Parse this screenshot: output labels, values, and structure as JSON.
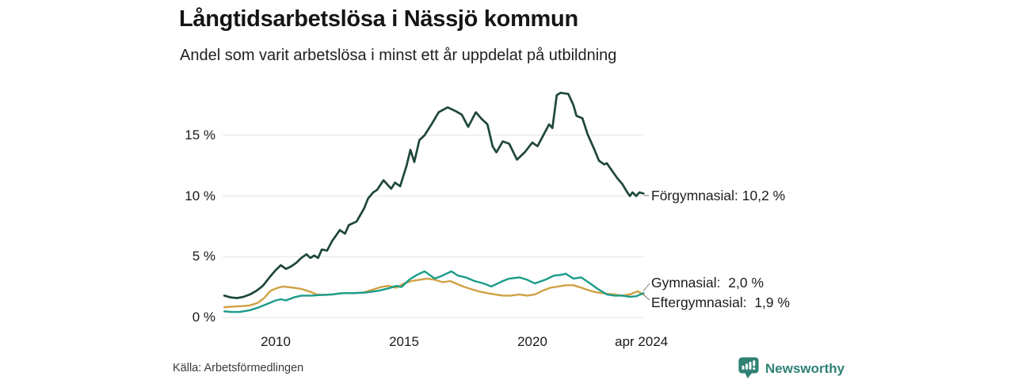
{
  "header": {
    "title": "Långtidsarbetslösa i Nässjö kommun",
    "subtitle": "Andel som varit arbetslösa i minst ett år uppdelat på utbildning"
  },
  "footer": {
    "source": "Källa: Arbetsförmedlingen",
    "brand": {
      "name": "Newsworthy",
      "color": "#2f8173",
      "icon": "newsworthy-speech-bubble-bar-chart-icon"
    }
  },
  "chart_data": {
    "type": "line",
    "title": "Långtidsarbetslösa i Nässjö kommun",
    "subtitle": "Andel som varit arbetslösa i minst ett år uppdelat på utbildning",
    "xlabel": "",
    "ylabel": "",
    "unit": "%",
    "grid": "horizontal",
    "legend_position": "right-end-labels",
    "xlim": [
      2008.0,
      2024.33
    ],
    "ylim": [
      0,
      19
    ],
    "x_ticks": [
      {
        "label": "2010",
        "value": 2010
      },
      {
        "label": "2015",
        "value": 2015
      },
      {
        "label": "2020",
        "value": 2020
      },
      {
        "label": "apr 2024",
        "value": 2024.25
      }
    ],
    "y_ticks": [
      {
        "label": "0 %",
        "value": 0
      },
      {
        "label": "5 %",
        "value": 5
      },
      {
        "label": "10 %",
        "value": 10
      },
      {
        "label": "15 %",
        "value": 15
      }
    ],
    "series": [
      {
        "id": "eftergymnasial",
        "name": "Eftergymnasial",
        "color": "#d0a144",
        "end_value": "1,9 %",
        "end_label": "Eftergymnasial:  1,9 %",
        "points": [
          [
            2008.0,
            0.85
          ],
          [
            2008.4,
            0.9
          ],
          [
            2008.8,
            0.95
          ],
          [
            2009.0,
            1.0
          ],
          [
            2009.3,
            1.2
          ],
          [
            2009.55,
            1.6
          ],
          [
            2009.8,
            2.2
          ],
          [
            2010.1,
            2.45
          ],
          [
            2010.3,
            2.55
          ],
          [
            2010.7,
            2.45
          ],
          [
            2011.0,
            2.35
          ],
          [
            2011.3,
            2.15
          ],
          [
            2011.6,
            1.9
          ],
          [
            2011.9,
            1.85
          ],
          [
            2012.2,
            1.9
          ],
          [
            2012.6,
            2.0
          ],
          [
            2013.0,
            2.0
          ],
          [
            2013.4,
            2.05
          ],
          [
            2013.8,
            2.3
          ],
          [
            2014.1,
            2.5
          ],
          [
            2014.4,
            2.6
          ],
          [
            2014.7,
            2.45
          ],
          [
            2015.0,
            2.8
          ],
          [
            2015.3,
            3.0
          ],
          [
            2015.6,
            3.1
          ],
          [
            2015.9,
            3.2
          ],
          [
            2016.2,
            3.1
          ],
          [
            2016.5,
            2.9
          ],
          [
            2016.8,
            3.0
          ],
          [
            2017.3,
            2.55
          ],
          [
            2017.6,
            2.35
          ],
          [
            2017.9,
            2.15
          ],
          [
            2018.25,
            2.0
          ],
          [
            2018.55,
            1.9
          ],
          [
            2018.85,
            1.8
          ],
          [
            2019.15,
            1.8
          ],
          [
            2019.5,
            1.9
          ],
          [
            2019.8,
            1.8
          ],
          [
            2020.1,
            1.9
          ],
          [
            2020.4,
            2.2
          ],
          [
            2020.7,
            2.45
          ],
          [
            2021.0,
            2.55
          ],
          [
            2021.3,
            2.65
          ],
          [
            2021.6,
            2.65
          ],
          [
            2021.9,
            2.45
          ],
          [
            2022.25,
            2.2
          ],
          [
            2022.55,
            2.05
          ],
          [
            2022.9,
            1.95
          ],
          [
            2023.2,
            1.9
          ],
          [
            2023.5,
            1.8
          ],
          [
            2023.8,
            1.9
          ],
          [
            2024.1,
            2.15
          ],
          [
            2024.33,
            1.9
          ]
        ]
      },
      {
        "id": "gymnasial",
        "name": "Gymnasial",
        "color": "#1a9c89",
        "end_value": "2,0 %",
        "end_label": "Gymnasial:  2,0 %",
        "points": [
          [
            2008.0,
            0.5
          ],
          [
            2008.3,
            0.45
          ],
          [
            2008.6,
            0.45
          ],
          [
            2009.0,
            0.6
          ],
          [
            2009.3,
            0.8
          ],
          [
            2009.6,
            1.05
          ],
          [
            2010.0,
            1.4
          ],
          [
            2010.2,
            1.5
          ],
          [
            2010.4,
            1.4
          ],
          [
            2010.7,
            1.65
          ],
          [
            2011.0,
            1.8
          ],
          [
            2011.4,
            1.8
          ],
          [
            2011.8,
            1.85
          ],
          [
            2012.2,
            1.9
          ],
          [
            2012.6,
            2.0
          ],
          [
            2013.0,
            2.0
          ],
          [
            2013.5,
            2.05
          ],
          [
            2014.0,
            2.2
          ],
          [
            2014.4,
            2.4
          ],
          [
            2014.7,
            2.6
          ],
          [
            2014.9,
            2.5
          ],
          [
            2015.2,
            3.1
          ],
          [
            2015.5,
            3.5
          ],
          [
            2015.8,
            3.8
          ],
          [
            2016.2,
            3.2
          ],
          [
            2016.5,
            3.45
          ],
          [
            2016.85,
            3.8
          ],
          [
            2017.1,
            3.45
          ],
          [
            2017.4,
            3.3
          ],
          [
            2017.75,
            3.0
          ],
          [
            2018.1,
            2.8
          ],
          [
            2018.4,
            2.55
          ],
          [
            2018.85,
            3.0
          ],
          [
            2019.1,
            3.2
          ],
          [
            2019.5,
            3.3
          ],
          [
            2019.8,
            3.1
          ],
          [
            2020.1,
            2.8
          ],
          [
            2020.5,
            3.1
          ],
          [
            2020.85,
            3.45
          ],
          [
            2021.1,
            3.5
          ],
          [
            2021.3,
            3.6
          ],
          [
            2021.6,
            3.2
          ],
          [
            2021.9,
            3.3
          ],
          [
            2022.25,
            2.8
          ],
          [
            2022.55,
            2.35
          ],
          [
            2022.9,
            1.9
          ],
          [
            2023.2,
            1.8
          ],
          [
            2023.5,
            1.8
          ],
          [
            2023.8,
            1.7
          ],
          [
            2024.05,
            1.75
          ],
          [
            2024.33,
            2.0
          ]
        ]
      },
      {
        "id": "forgymnasial",
        "name": "Förgymnasial",
        "color": "#1e473c",
        "end_value": "10,2 %",
        "end_label": "Förgymnasial: 10,2 %",
        "points": [
          [
            2008.0,
            1.8
          ],
          [
            2008.25,
            1.65
          ],
          [
            2008.5,
            1.6
          ],
          [
            2008.75,
            1.7
          ],
          [
            2009.0,
            1.9
          ],
          [
            2009.25,
            2.2
          ],
          [
            2009.5,
            2.6
          ],
          [
            2009.8,
            3.4
          ],
          [
            2010.0,
            3.9
          ],
          [
            2010.2,
            4.3
          ],
          [
            2010.4,
            4.0
          ],
          [
            2010.6,
            4.2
          ],
          [
            2010.8,
            4.5
          ],
          [
            2011.0,
            4.9
          ],
          [
            2011.2,
            5.2
          ],
          [
            2011.35,
            4.9
          ],
          [
            2011.5,
            5.1
          ],
          [
            2011.65,
            4.9
          ],
          [
            2011.8,
            5.6
          ],
          [
            2012.0,
            5.5
          ],
          [
            2012.2,
            6.3
          ],
          [
            2012.5,
            7.2
          ],
          [
            2012.7,
            6.9
          ],
          [
            2012.85,
            7.6
          ],
          [
            2013.15,
            7.9
          ],
          [
            2013.45,
            9.0
          ],
          [
            2013.6,
            9.8
          ],
          [
            2013.8,
            10.3
          ],
          [
            2013.95,
            10.5
          ],
          [
            2014.2,
            11.3
          ],
          [
            2014.5,
            10.6
          ],
          [
            2014.65,
            11.1
          ],
          [
            2014.85,
            10.8
          ],
          [
            2015.1,
            12.5
          ],
          [
            2015.25,
            13.8
          ],
          [
            2015.4,
            12.8
          ],
          [
            2015.6,
            14.6
          ],
          [
            2015.8,
            15.0
          ],
          [
            2016.1,
            16.0
          ],
          [
            2016.35,
            16.9
          ],
          [
            2016.7,
            17.3
          ],
          [
            2017.0,
            17.0
          ],
          [
            2017.25,
            16.7
          ],
          [
            2017.5,
            15.7
          ],
          [
            2017.8,
            16.9
          ],
          [
            2018.0,
            16.4
          ],
          [
            2018.25,
            15.9
          ],
          [
            2018.45,
            14.1
          ],
          [
            2018.6,
            13.6
          ],
          [
            2018.85,
            14.5
          ],
          [
            2019.1,
            14.3
          ],
          [
            2019.4,
            13.0
          ],
          [
            2019.7,
            13.6
          ],
          [
            2020.0,
            14.4
          ],
          [
            2020.2,
            14.1
          ],
          [
            2020.65,
            15.9
          ],
          [
            2020.78,
            15.6
          ],
          [
            2020.95,
            18.3
          ],
          [
            2021.1,
            18.5
          ],
          [
            2021.4,
            18.4
          ],
          [
            2021.6,
            17.5
          ],
          [
            2021.72,
            16.6
          ],
          [
            2021.95,
            16.4
          ],
          [
            2022.15,
            15.1
          ],
          [
            2022.4,
            13.9
          ],
          [
            2022.6,
            12.9
          ],
          [
            2022.8,
            12.6
          ],
          [
            2022.9,
            12.7
          ],
          [
            2023.1,
            12.1
          ],
          [
            2023.3,
            11.5
          ],
          [
            2023.5,
            11.0
          ],
          [
            2023.7,
            10.3
          ],
          [
            2023.8,
            10.0
          ],
          [
            2023.9,
            10.3
          ],
          [
            2024.05,
            10.0
          ],
          [
            2024.17,
            10.3
          ],
          [
            2024.33,
            10.2
          ]
        ]
      }
    ]
  }
}
